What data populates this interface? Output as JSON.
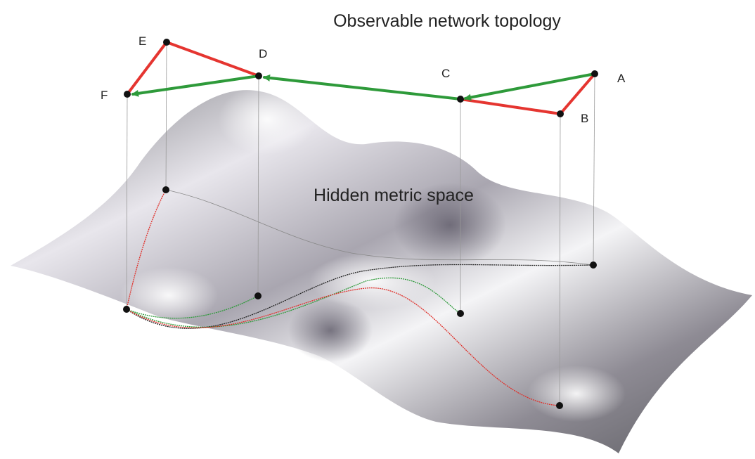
{
  "title": "Observable network topology",
  "surface_label": "Hidden metric space",
  "nodes": [
    {
      "label": "A"
    },
    {
      "label": "B"
    },
    {
      "label": "C"
    },
    {
      "label": "D"
    },
    {
      "label": "E"
    },
    {
      "label": "F"
    }
  ]
}
